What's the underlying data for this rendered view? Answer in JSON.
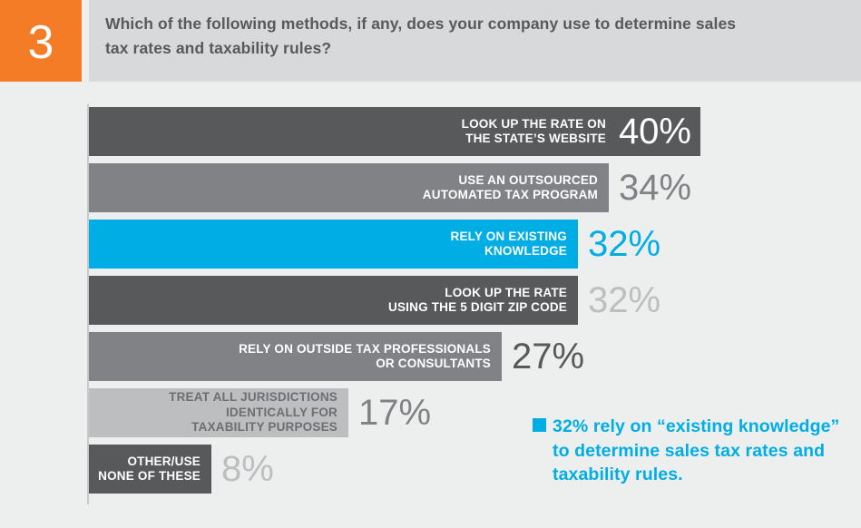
{
  "header": {
    "question_number": "3",
    "question_number_color": "#f47c26",
    "title": "Which of the following methods, if any, does your company use to determine sales\ntax rates and taxability rules?"
  },
  "chart_data": {
    "type": "bar",
    "orientation": "horizontal",
    "title": "Which of the following methods, if any, does your company use to determine sales tax rates and taxability rules?",
    "xlim": [
      0,
      40
    ],
    "grid": false,
    "bars": [
      {
        "label": "LOOK UP THE RATE ON\nTHE STATE’S WEBSITE",
        "value": 40,
        "value_label": "40%",
        "bar_color": "#58595b",
        "label_color": "#ffffff",
        "value_color": "#ffffff",
        "value_inside": true
      },
      {
        "label": "USE AN OUTSOURCED\nAUTOMATED TAX PROGRAM",
        "value": 34,
        "value_label": "34%",
        "bar_color": "#808285",
        "label_color": "#ffffff",
        "value_color": "#808285",
        "value_inside": false
      },
      {
        "label": "RELY ON EXISTING\nKNOWLEDGE",
        "value": 32,
        "value_label": "32%",
        "bar_color": "#00aee5",
        "label_color": "#ffffff",
        "value_color": "#00aee5",
        "value_inside": false
      },
      {
        "label": "LOOK UP THE RATE\nUSING THE 5 DIGIT ZIP CODE",
        "value": 32,
        "value_label": "32%",
        "bar_color": "#58595b",
        "label_color": "#ffffff",
        "value_color": "#bcbec0",
        "value_inside": false
      },
      {
        "label": "RELY ON OUTSIDE TAX PROFESSIONALS\nOR CONSULTANTS",
        "value": 27,
        "value_label": "27%",
        "bar_color": "#808285",
        "label_color": "#ffffff",
        "value_color": "#58595b",
        "value_inside": false
      },
      {
        "label": "TREAT ALL JURISDICTIONS\nIDENTICALLY FOR\nTAXABILITY PURPOSES",
        "value": 17,
        "value_label": "17%",
        "bar_color": "#bcbec0",
        "label_color": "#6d6e71",
        "value_color": "#808285",
        "value_inside": false
      },
      {
        "label": "OTHER/USE\nNONE OF THESE",
        "value": 8,
        "value_label": "8%",
        "bar_color": "#58595b",
        "label_color": "#ffffff",
        "value_color": "#bcbec0",
        "value_inside": false
      }
    ],
    "annotation": {
      "text": "32% rely on “existing knowledge”\nto determine sales tax rates and\ntaxability rules.",
      "color": "#00aee5",
      "marker_color": "#00aee5"
    }
  },
  "colors": {
    "page_background": "#edeeee",
    "header_background": "#d8d9da",
    "title_text": "#58595b",
    "axis_line": "#c8c9cb",
    "accent_orange": "#f47c26",
    "accent_blue": "#00aee5"
  }
}
